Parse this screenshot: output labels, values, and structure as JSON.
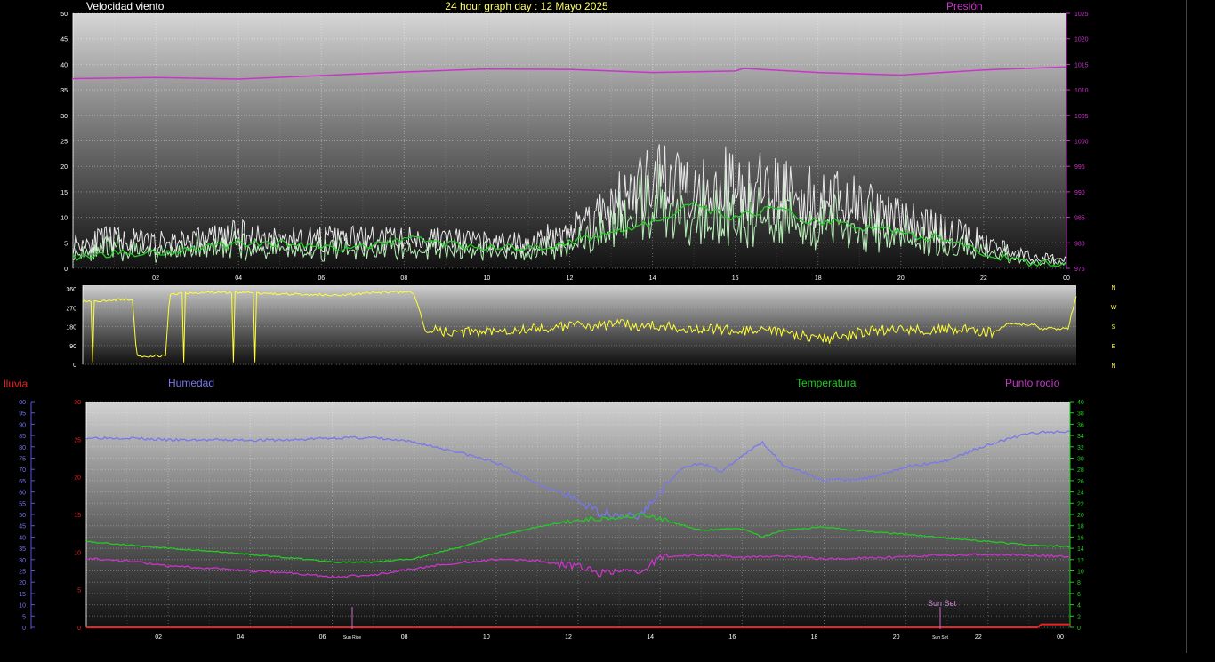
{
  "header": {
    "title": "24 hour graph day : 12 Mayo 2025",
    "wind_label": "Velocidad viento",
    "pressure_label": "Presión"
  },
  "bottom_labels": {
    "rain": "lluvia",
    "humidity": "Humedad",
    "temperature": "Temperatura",
    "dewpoint": "Punto rocío",
    "sunrise_small": "Sun Rise",
    "sunset_small": "Sun Set",
    "sunset_big": "Sun Set"
  },
  "colors": {
    "wind_gust": "#e8e8e8",
    "wind_speed": "#b8f0b8",
    "wind_avg": "#22cc22",
    "pressure": "#cc33cc",
    "direction": "#ffff33",
    "humidity": "#7777ee",
    "temperature": "#22cc22",
    "dewpoint": "#cc33cc",
    "rain": "#ee2222",
    "title": "#ffff66",
    "sun": "#cc66cc"
  },
  "chart_data": [
    {
      "type": "line",
      "name": "wind-pressure",
      "x_ticks": [
        "02",
        "04",
        "06",
        "08",
        "10",
        "12",
        "14",
        "16",
        "18",
        "20",
        "22",
        "00"
      ],
      "y_left_ticks": [
        "0",
        "5",
        "10",
        "15",
        "20",
        "25",
        "30",
        "35",
        "40",
        "45",
        "50"
      ],
      "y_right_ticks": [
        "975",
        "980",
        "985",
        "990",
        "995",
        "1000",
        "1005",
        "1010",
        "1015",
        "1020",
        "1025"
      ],
      "ylim_left": [
        0,
        50
      ],
      "ylim_right": [
        975,
        1025
      ],
      "grid": true,
      "series": [
        {
          "name": "Velocidad viento",
          "key": "gust",
          "hours": [
            0,
            1,
            2,
            3,
            4,
            5,
            6,
            7,
            8,
            9,
            10,
            11,
            12,
            12.5,
            13,
            13.5,
            14,
            14.5,
            15,
            15.5,
            16,
            16.5,
            17,
            17.5,
            18,
            18.5,
            19,
            19.5,
            20,
            20.5,
            21,
            21.5,
            22,
            22.5,
            23,
            24
          ],
          "values": [
            6,
            7,
            6,
            7,
            8,
            7,
            7,
            7,
            7,
            7,
            6,
            6,
            9,
            12,
            15,
            18,
            20,
            21,
            21,
            20,
            20,
            19,
            19,
            18,
            17,
            16,
            15,
            13,
            12,
            11,
            9,
            8,
            6,
            5,
            3,
            2
          ]
        },
        {
          "name": "average",
          "key": "avg",
          "hours": [
            0,
            1,
            2,
            3,
            4,
            5,
            6,
            7,
            8,
            9,
            10,
            11,
            12,
            12.5,
            13,
            13.5,
            14,
            14.5,
            15,
            15.5,
            16,
            16.5,
            17,
            17.5,
            18,
            18.5,
            19,
            19.5,
            20,
            20.5,
            21,
            21.5,
            22,
            22.5,
            23,
            24
          ],
          "values": [
            2,
            3,
            3,
            4,
            5,
            5,
            4,
            4,
            6,
            5,
            4,
            4,
            5,
            6,
            7,
            8,
            9,
            10,
            13,
            11,
            10,
            11,
            12,
            10,
            9,
            9,
            8,
            8,
            7,
            6,
            6,
            5,
            3,
            2,
            1,
            1
          ]
        },
        {
          "name": "Presión",
          "hours": [
            0,
            2,
            4,
            6,
            8,
            10,
            12,
            14,
            16,
            16.2,
            18,
            20,
            22,
            24
          ],
          "values": [
            1012.2,
            1012.4,
            1012.1,
            1012.8,
            1013.5,
            1014.1,
            1014.0,
            1013.4,
            1013.7,
            1014.2,
            1013.4,
            1012.9,
            1013.9,
            1014.5
          ]
        }
      ]
    },
    {
      "type": "line",
      "name": "wind-direction",
      "y_ticks": [
        "0",
        "90",
        "180",
        "270",
        "360"
      ],
      "ylim": [
        0,
        360
      ],
      "legend_letters": [
        "N",
        "W",
        "S",
        "E",
        "N"
      ],
      "series": [
        {
          "name": "direction",
          "hours": [
            0,
            1.2,
            1.3,
            1.5,
            2.0,
            2.1,
            3,
            4,
            5,
            6,
            7,
            7.5,
            8,
            8.3,
            8.5,
            9,
            10,
            11,
            12,
            13,
            14,
            15,
            16,
            17,
            18,
            19,
            20,
            21,
            22,
            22.3,
            23,
            23.1,
            23.8,
            24
          ],
          "values": [
            300,
            310,
            40,
            40,
            40,
            335,
            345,
            340,
            335,
            330,
            340,
            345,
            340,
            150,
            160,
            150,
            165,
            170,
            185,
            190,
            180,
            170,
            160,
            150,
            120,
            160,
            165,
            170,
            150,
            190,
            190,
            170,
            170,
            330
          ]
        }
      ]
    },
    {
      "type": "line",
      "name": "temp-humidity",
      "x_ticks": [
        "02",
        "04",
        "06",
        "08",
        "10",
        "12",
        "14",
        "16",
        "18",
        "20",
        "22",
        "00"
      ],
      "rain_ticks": [
        "0",
        "5",
        "10",
        "15",
        "20",
        "25",
        "30"
      ],
      "humidity_ticks": [
        "0",
        "5",
        "10",
        "15",
        "20",
        "25",
        "30",
        "35",
        "40",
        "45",
        "50",
        "55",
        "60",
        "65",
        "70",
        "75",
        "80",
        "85",
        "90",
        "95",
        "00"
      ],
      "temp_ticks": [
        "0",
        "2",
        "4",
        "6",
        "8",
        "10",
        "12",
        "14",
        "16",
        "18",
        "20",
        "22",
        "24",
        "26",
        "28",
        "30",
        "32",
        "34",
        "36",
        "38",
        "40"
      ],
      "ylim_temp": [
        0,
        40
      ],
      "ylim_humidity": [
        0,
        100
      ],
      "ylim_rain": [
        0,
        30
      ],
      "series": [
        {
          "name": "Humedad",
          "hours": [
            0,
            1,
            2,
            3,
            4,
            5,
            6,
            7,
            8,
            9,
            10,
            11,
            12,
            12.5,
            13,
            13.5,
            14,
            14.5,
            15,
            15.5,
            16,
            16.5,
            17,
            18,
            19,
            20,
            21,
            22,
            23,
            24
          ],
          "values": [
            84,
            84,
            83,
            83,
            83,
            83,
            84,
            84,
            82,
            78,
            73,
            64,
            56,
            51,
            50,
            49,
            60,
            70,
            73,
            69,
            76,
            82,
            72,
            65,
            66,
            71,
            74,
            81,
            86,
            87
          ]
        },
        {
          "name": "Temperatura",
          "hours": [
            0,
            1,
            2,
            3,
            4,
            5,
            6,
            7,
            8,
            9,
            10,
            11,
            12,
            13,
            13.5,
            14,
            15,
            16,
            16.5,
            17,
            18,
            19,
            20,
            21,
            22,
            23,
            24
          ],
          "values": [
            15.2,
            14.6,
            14.0,
            13.5,
            12.9,
            12.3,
            11.6,
            11.5,
            12.2,
            14.0,
            16.1,
            17.8,
            19.0,
            19.5,
            19.9,
            19.2,
            17.2,
            17.5,
            16.0,
            17.2,
            17.8,
            17.0,
            16.5,
            15.8,
            15.2,
            14.6,
            14.3
          ]
        },
        {
          "name": "Punto rocío",
          "hours": [
            0,
            1,
            2,
            3,
            4,
            5,
            6,
            7,
            8,
            9,
            10,
            11,
            12,
            12.5,
            13,
            13.5,
            14,
            15,
            16,
            17,
            18,
            19,
            20,
            21,
            22,
            23,
            24
          ],
          "values": [
            12.2,
            11.8,
            10.8,
            10.5,
            10.0,
            9.6,
            8.9,
            9.3,
            10.4,
            11.4,
            12.0,
            11.8,
            10.8,
            9.6,
            10.0,
            9.5,
            12.5,
            12.8,
            12.4,
            12.7,
            12.1,
            12.3,
            12.5,
            12.8,
            12.9,
            12.8,
            12.5
          ]
        },
        {
          "name": "lluvia",
          "hours": [
            0,
            23.2,
            23.3,
            24
          ],
          "values": [
            0,
            0,
            0.4,
            0.4
          ]
        }
      ]
    }
  ]
}
